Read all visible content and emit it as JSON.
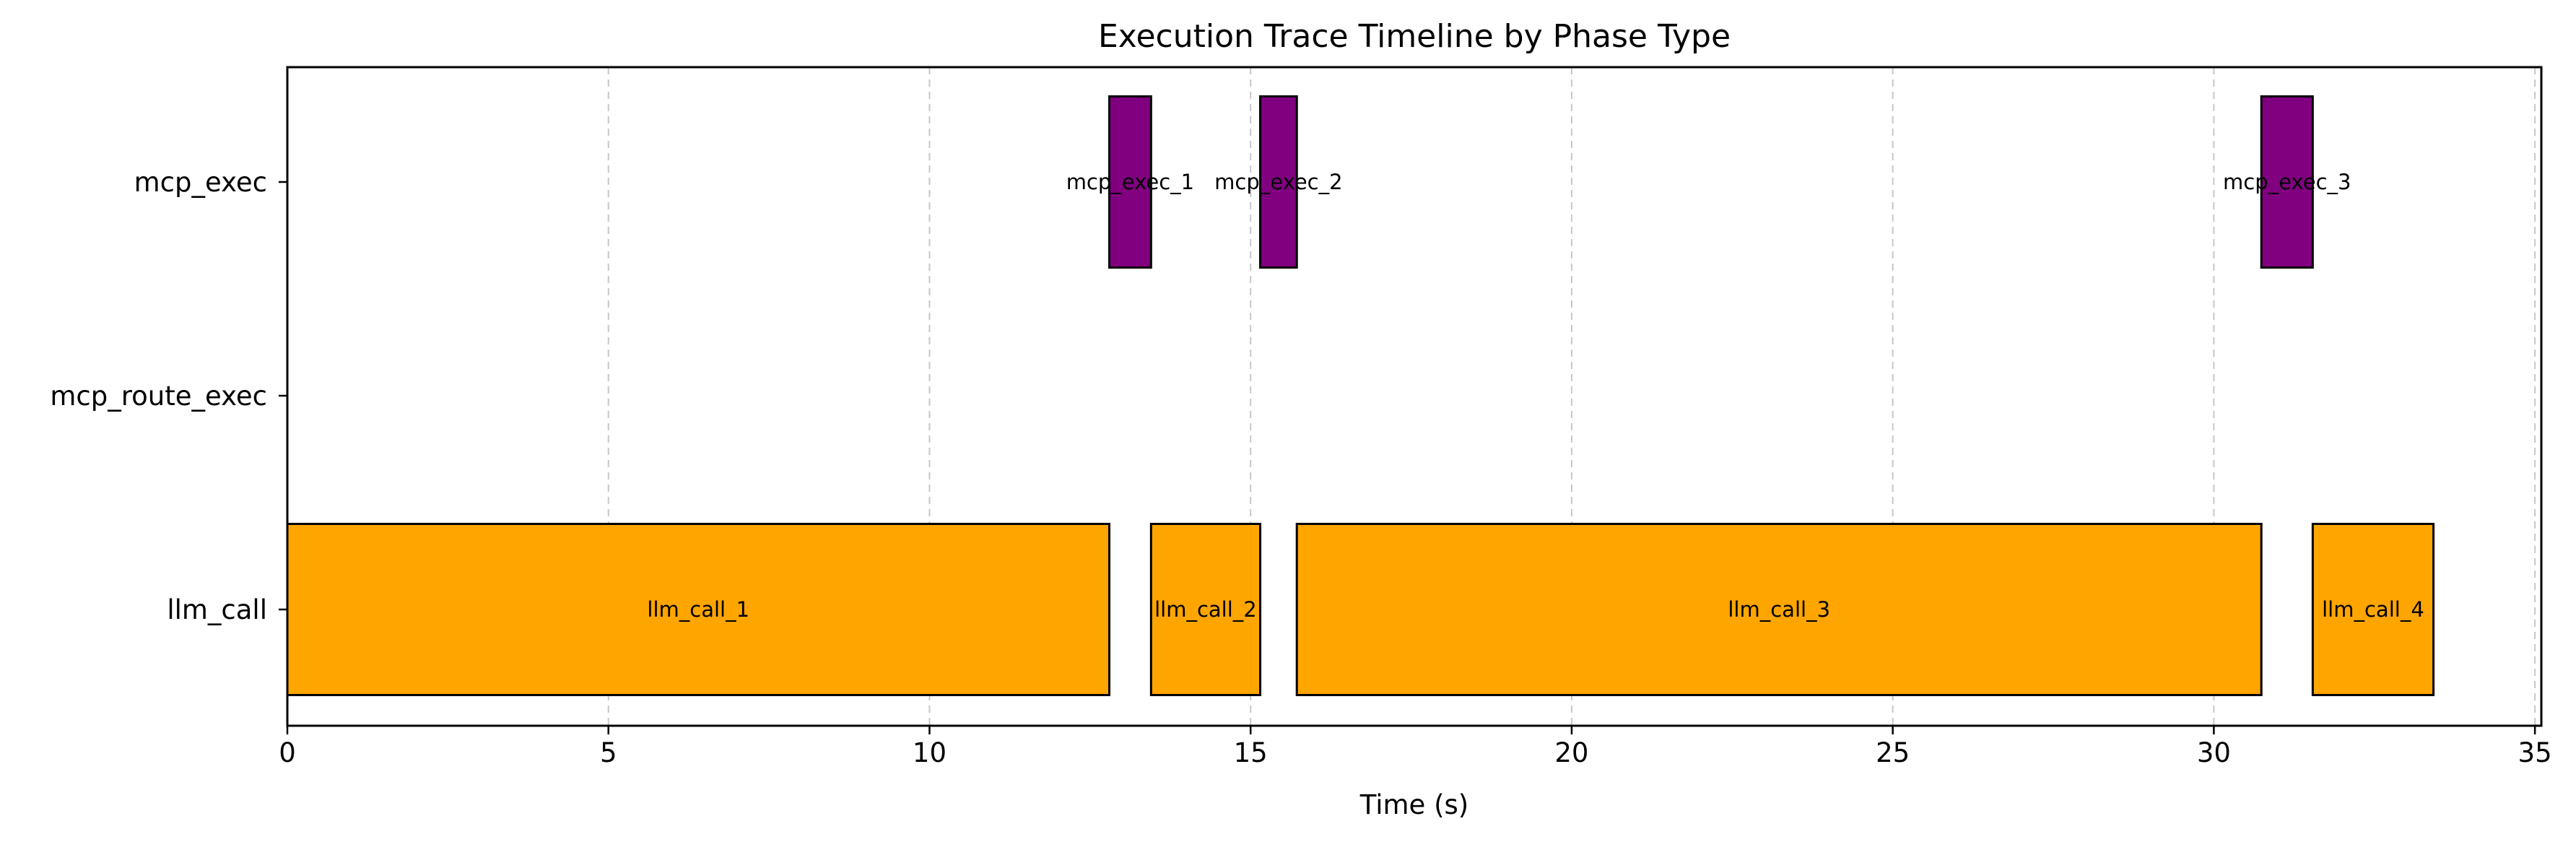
{
  "chart_data": {
    "type": "gantt",
    "title": "Execution Trace Timeline by Phase Type",
    "xlabel": "Time (s)",
    "ylabel": "",
    "xlim": [
      0,
      35.1
    ],
    "xticks": [
      0,
      5,
      10,
      15,
      20,
      25,
      30,
      35
    ],
    "grid": "vertical dashed",
    "lanes": [
      "mcp_exec",
      "mcp_route_exec",
      "llm_call"
    ],
    "colors": {
      "llm_call": "#FFA500",
      "mcp_exec": "#800080"
    },
    "bars": [
      {
        "label": "llm_call_1",
        "lane": "llm_call",
        "start": 0.0,
        "end": 12.8
      },
      {
        "label": "mcp_exec_1",
        "lane": "mcp_exec",
        "start": 12.8,
        "end": 13.45
      },
      {
        "label": "llm_call_2",
        "lane": "llm_call",
        "start": 13.45,
        "end": 15.15
      },
      {
        "label": "mcp_exec_2",
        "lane": "mcp_exec",
        "start": 15.15,
        "end": 15.72
      },
      {
        "label": "llm_call_3",
        "lane": "llm_call",
        "start": 15.72,
        "end": 30.74
      },
      {
        "label": "mcp_exec_3",
        "lane": "mcp_exec",
        "start": 30.74,
        "end": 31.54
      },
      {
        "label": "llm_call_4",
        "lane": "llm_call",
        "start": 31.54,
        "end": 33.42
      }
    ]
  }
}
